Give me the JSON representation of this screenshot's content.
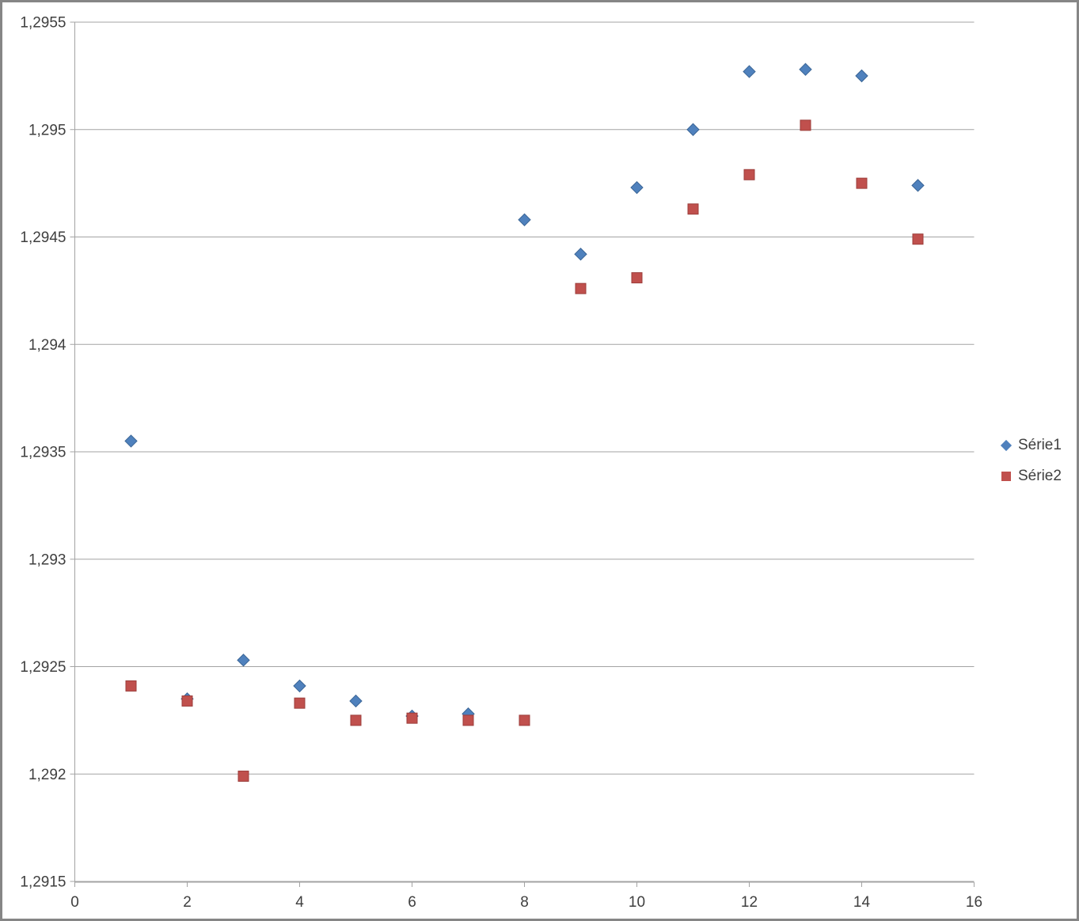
{
  "chart_data": {
    "type": "scatter",
    "title": "",
    "xlabel": "",
    "ylabel": "",
    "grid": "horizontal",
    "legend_position": "right",
    "decimal_separator": ",",
    "xlim": [
      0,
      16
    ],
    "ylim": [
      1.2915,
      1.2955
    ],
    "x": [
      1,
      2,
      3,
      4,
      5,
      6,
      7,
      8,
      9,
      10,
      11,
      12,
      13,
      14,
      15
    ],
    "series": [
      {
        "name": "Série1",
        "marker": "diamond",
        "color": "#4F81BD",
        "edge_color": "#3A6596",
        "values": [
          1.29355,
          1.29235,
          1.29253,
          1.29241,
          1.29234,
          1.29227,
          1.29228,
          1.29458,
          1.29442,
          1.29473,
          1.295,
          1.29527,
          1.29528,
          1.29525,
          1.29474
        ]
      },
      {
        "name": "Série2",
        "marker": "square",
        "color": "#C0504D",
        "edge_color": "#9C3E3B",
        "values": [
          1.29241,
          1.29234,
          1.29199,
          1.29233,
          1.29225,
          1.29226,
          1.29225,
          1.29225,
          1.29426,
          1.29431,
          1.29463,
          1.29479,
          1.29502,
          1.29475,
          1.29449
        ]
      }
    ],
    "x_ticks": {
      "values": [
        0,
        2,
        4,
        6,
        8,
        10,
        12,
        14,
        16
      ],
      "labels": [
        "0",
        "2",
        "4",
        "6",
        "8",
        "10",
        "12",
        "14",
        "16"
      ]
    },
    "y_ticks": {
      "values": [
        1.2915,
        1.292,
        1.2925,
        1.293,
        1.2935,
        1.294,
        1.2945,
        1.295,
        1.2955
      ],
      "labels": [
        "1,2915",
        "1,292",
        "1,2925",
        "1,293",
        "1,2935",
        "1,294",
        "1,2945",
        "1,295",
        "1,2955"
      ]
    }
  },
  "legend": {
    "items": [
      {
        "label": "Série1"
      },
      {
        "label": "Série2"
      }
    ]
  },
  "colors": {
    "serie1": "#4F81BD",
    "serie2": "#C0504D",
    "gridline": "#A3A3A3",
    "axis": "#A3A3A3",
    "tick_label": "#3F3F3F",
    "frame_border": "#868686",
    "background": "#FFFFFF"
  }
}
